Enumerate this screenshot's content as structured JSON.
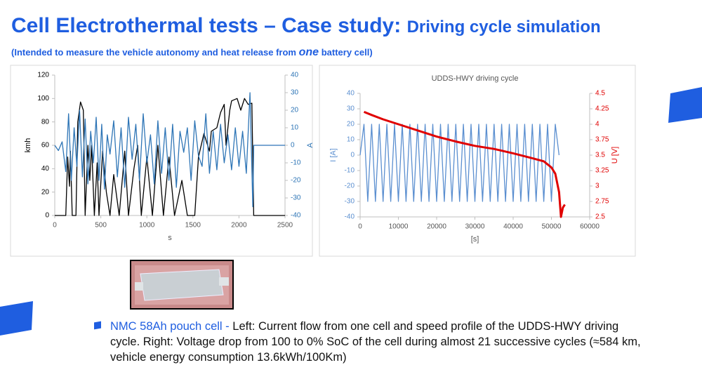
{
  "slide": {
    "title": "Cell Electrothermal tests – Case study:",
    "title_sub": "Driving cycle simulation",
    "subtitle_start": "(Intended to measure the vehicle autonomy and heat release from",
    "subtitle_emphasis": "one",
    "subtitle_end": "battery cell)",
    "bullet_lead": "NMC 58Ah pouch cell -",
    "bullet_text": "Left: Current flow from one cell and speed profile of the UDDS-HWY driving cycle. Right: Voltage drop from 100 to 0% SoC of the cell during almost 21 successive cycles (≈584 km, vehicle energy consumption 13.6kWh/100Km)"
  },
  "chart_data": [
    {
      "type": "line",
      "xlabel": "s",
      "ylabel": "kmh",
      "y2label": "A",
      "xlim": [
        0,
        2500
      ],
      "xticks": [
        0,
        500,
        1000,
        1500,
        2000,
        2500
      ],
      "ylim": [
        0,
        120
      ],
      "yticks": [
        0,
        20,
        40,
        60,
        80,
        100,
        120
      ],
      "y2lim": [
        -40,
        40
      ],
      "y2ticks": [
        -40,
        -30,
        -20,
        -10,
        0,
        10,
        20,
        30,
        40
      ],
      "series": [
        {
          "color": "#000000",
          "x": [
            0,
            120,
            140,
            160,
            170,
            190,
            230,
            250,
            280,
            310,
            330,
            360,
            380,
            400,
            430,
            460,
            480,
            520,
            560,
            600,
            640,
            700,
            760,
            800,
            860,
            900,
            940,
            1000,
            1060,
            1120,
            1180,
            1240,
            1300,
            1380,
            1440,
            1520,
            1560,
            1620,
            1680,
            1700,
            1760,
            1800,
            1840,
            1860,
            1900,
            1920,
            1980,
            2020,
            2060,
            2100,
            2140,
            2160,
            2500
          ],
          "values": [
            0,
            0,
            50,
            25,
            55,
            0,
            0,
            80,
            97,
            90,
            0,
            60,
            30,
            60,
            0,
            45,
            0,
            55,
            20,
            0,
            35,
            0,
            55,
            0,
            40,
            60,
            0,
            50,
            0,
            60,
            0,
            50,
            0,
            30,
            0,
            0,
            50,
            70,
            55,
            72,
            75,
            88,
            95,
            60,
            90,
            98,
            100,
            90,
            100,
            95,
            96,
            0,
            0
          ]
        },
        {
          "color": "#2e75b6",
          "axis": "y2",
          "x": [
            0,
            40,
            80,
            120,
            150,
            180,
            210,
            240,
            270,
            300,
            330,
            360,
            390,
            420,
            450,
            480,
            510,
            540,
            570,
            600,
            640,
            680,
            720,
            760,
            800,
            840,
            880,
            920,
            960,
            1000,
            1040,
            1080,
            1120,
            1160,
            1200,
            1240,
            1280,
            1320,
            1360,
            1400,
            1440,
            1480,
            1520,
            1560,
            1600,
            1640,
            1680,
            1720,
            1760,
            1800,
            1840,
            1880,
            1920,
            1960,
            2000,
            2040,
            2080,
            2120,
            2150,
            2160,
            2500
          ],
          "values": [
            0,
            -3,
            2,
            -15,
            18,
            -20,
            10,
            -12,
            20,
            -18,
            15,
            -22,
            8,
            -10,
            16,
            -20,
            12,
            -25,
            6,
            -5,
            14,
            -18,
            10,
            -24,
            16,
            -8,
            12,
            -20,
            18,
            -10,
            6,
            -22,
            14,
            -16,
            10,
            -20,
            12,
            -24,
            8,
            -4,
            10,
            -20,
            14,
            -6,
            -12,
            18,
            -16,
            8,
            -14,
            12,
            -10,
            6,
            -14,
            10,
            -12,
            8,
            -16,
            30,
            -35,
            0,
            0
          ]
        }
      ]
    },
    {
      "type": "line",
      "title": "UDDS-HWY driving cycle",
      "xlabel": "[s]",
      "ylabel": "I [A]",
      "y2label": "U [V]",
      "xlim": [
        0,
        60000
      ],
      "xticks": [
        0,
        10000,
        20000,
        30000,
        40000,
        50000,
        60000
      ],
      "ylim": [
        -40,
        40
      ],
      "yticks": [
        -40,
        -30,
        -20,
        -10,
        0,
        10,
        20,
        30,
        40
      ],
      "y2lim": [
        2.5,
        4.5
      ],
      "y2ticks": [
        2.5,
        2.75,
        3,
        3.25,
        3.5,
        3.75,
        4,
        4.25,
        4.5
      ],
      "series": [
        {
          "color": "#5b8fd0",
          "x": [
            0,
            1000,
            2000,
            3000,
            4000,
            5000,
            6000,
            7000,
            8000,
            9000,
            10000,
            11000,
            12000,
            13000,
            14000,
            15000,
            16000,
            17000,
            18000,
            19000,
            20000,
            21000,
            22000,
            23000,
            24000,
            25000,
            26000,
            27000,
            28000,
            29000,
            30000,
            31000,
            32000,
            33000,
            34000,
            35000,
            36000,
            37000,
            38000,
            39000,
            40000,
            41000,
            42000,
            43000,
            44000,
            45000,
            46000,
            47000,
            48000,
            49000,
            50000,
            51000,
            52000
          ],
          "values": [
            0,
            20,
            -30,
            20,
            -30,
            20,
            -30,
            20,
            -30,
            20,
            -30,
            20,
            -30,
            20,
            -30,
            20,
            -30,
            20,
            -30,
            20,
            -30,
            20,
            -30,
            20,
            -30,
            20,
            -30,
            20,
            -30,
            20,
            -30,
            20,
            -30,
            20,
            -30,
            20,
            -30,
            20,
            -30,
            20,
            -30,
            20,
            -30,
            20,
            -30,
            20,
            -30,
            20,
            -30,
            20,
            -30,
            20,
            0
          ]
        },
        {
          "color": "#e00000",
          "axis": "y2",
          "x": [
            1000,
            3000,
            6000,
            10000,
            15000,
            20000,
            25000,
            30000,
            35000,
            40000,
            45000,
            48000,
            50000,
            51000,
            52000,
            52500,
            53000,
            53500
          ],
          "values": [
            4.2,
            4.15,
            4.08,
            4.0,
            3.9,
            3.8,
            3.72,
            3.65,
            3.6,
            3.53,
            3.45,
            3.4,
            3.3,
            3.2,
            2.9,
            2.5,
            2.65,
            2.7
          ]
        }
      ]
    }
  ]
}
